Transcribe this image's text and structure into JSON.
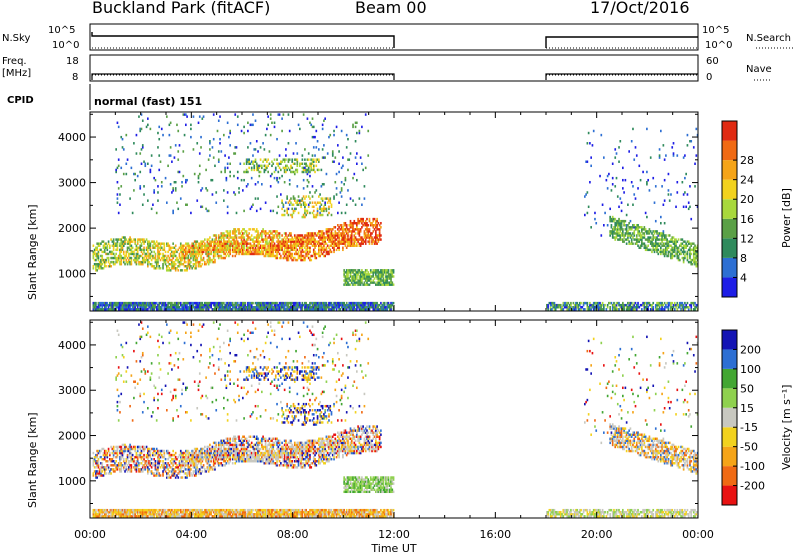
{
  "header": {
    "title": "Buckland Park (fitACF)",
    "beam": "Beam 00",
    "date": "17/Oct/2016"
  },
  "strips": {
    "nsky_label": "N.Sky",
    "nsky_ticks": [
      "10^5",
      "10^0"
    ],
    "nsearch_label": "N.Search",
    "nsearch_ticks": [
      "10^5",
      "10^0"
    ],
    "freq_label": "Freq.",
    "freq_unit": "[MHz]",
    "freq_ticks": [
      "18",
      "8"
    ],
    "nave_label": "Nave",
    "nave_ticks": [
      "60",
      "0"
    ],
    "cpid_label": "CPID",
    "cpid_value": "normal (fast) 151"
  },
  "colors": {
    "power": [
      "#1e1ee6",
      "#2d6fd3",
      "#2f8a5c",
      "#5aa046",
      "#a8d83c",
      "#f2d21e",
      "#f5a418",
      "#f06a14",
      "#e02a12"
    ],
    "velocity": [
      "#e81212",
      "#f06a14",
      "#f5a418",
      "#f2d21e",
      "#c8c8c0",
      "#8fd14f",
      "#42a632",
      "#2d6fd3",
      "#1414b4"
    ]
  },
  "chart_data": [
    {
      "type": "heatmap",
      "panel": "power",
      "ylabel": "Slant Range [km]",
      "yticks": [
        1000,
        2000,
        3000,
        4000
      ],
      "ylim": [
        180,
        4550
      ],
      "xlim": [
        0,
        24
      ],
      "colorbar_label": "Power [dB]",
      "colorbar_ticks": [
        "4",
        "8",
        "12",
        "16",
        "20",
        "24",
        "28"
      ],
      "data_gaps_hours": [
        [
          12,
          18
        ]
      ]
    },
    {
      "type": "heatmap",
      "panel": "velocity",
      "ylabel": "Slant Range [km]",
      "yticks": [
        1000,
        2000,
        3000,
        4000
      ],
      "ylim": [
        180,
        4550
      ],
      "xlim": [
        0,
        24
      ],
      "colorbar_label": "Velocity [m s⁻¹]",
      "colorbar_ticks": [
        "-200",
        "-100",
        "-50",
        "-15",
        "15",
        "50",
        "100",
        "200"
      ],
      "data_gaps_hours": [
        [
          12,
          18
        ]
      ]
    }
  ],
  "xaxis": {
    "label": "Time UT",
    "ticks": [
      "00:00",
      "04:00",
      "08:00",
      "12:00",
      "16:00",
      "20:00",
      "00:00"
    ]
  }
}
